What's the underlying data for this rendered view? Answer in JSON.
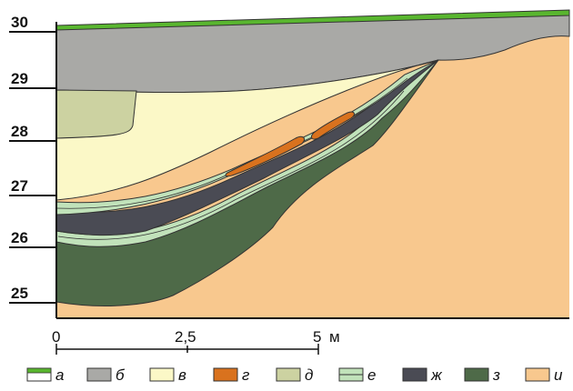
{
  "elevation_labels": [
    "30",
    "29",
    "28",
    "27",
    "26",
    "25"
  ],
  "scale_bar": {
    "labels": [
      "0",
      "2,5",
      "5"
    ],
    "unit": "м"
  },
  "legend": [
    {
      "letter": "а",
      "color": "#59b62f",
      "kind": "line"
    },
    {
      "letter": "б",
      "color": "#a9a9a6"
    },
    {
      "letter": "в",
      "color": "#fbf8c7"
    },
    {
      "letter": "г",
      "color": "#d9721e"
    },
    {
      "letter": "д",
      "color": "#ccd2a1"
    },
    {
      "letter": "е",
      "color": "#c1e2ba",
      "kind": "lined"
    },
    {
      "letter": "ж",
      "color": "#4a4b54"
    },
    {
      "letter": "з",
      "color": "#4e6a48"
    },
    {
      "letter": "и",
      "color": "#f8c88e"
    }
  ]
}
